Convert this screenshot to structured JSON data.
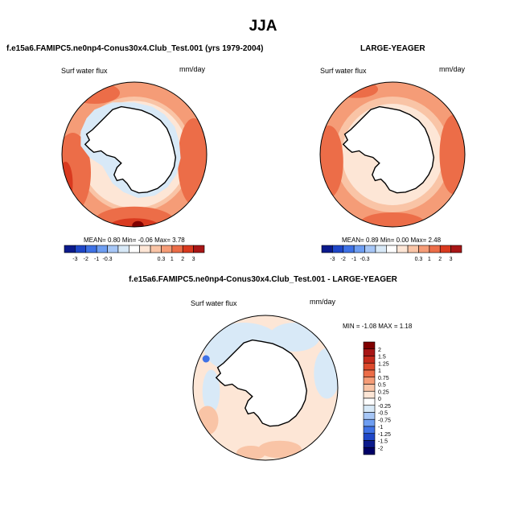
{
  "page": {
    "season": "JJA",
    "test_case": "f.e15a6.FAMIPC5.ne0np4-Conus30x4.Club_Test.001 (yrs 1979-2004)",
    "obs_case": "LARGE-YEAGER",
    "diff_title": "f.e15a6.FAMIPC5.ne0np4-Conus30x4.Club_Test.001 - LARGE-YEAGER"
  },
  "colors": {
    "land": "#ffffff",
    "ocean_base": "#f9c4a6",
    "ice": "#d8e9f7",
    "coast": "#000000"
  },
  "chart_data": [
    {
      "type": "heatmap",
      "projection": "polar-stereographic-south",
      "variable": "Surf water flux",
      "units": "mm/day",
      "mean_label": "MEAN=",
      "mean": "0.80",
      "min_label": "Min=",
      "min": "-0.06",
      "max_label": "Max=",
      "max": "3.78",
      "levels": [
        "-3",
        "-2",
        "-1",
        "-0.3",
        "0.3",
        "1",
        "2",
        "3"
      ],
      "colors": [
        "#0b1a8c",
        "#1f47c8",
        "#3f72e6",
        "#6e9ef2",
        "#a6c6f6",
        "#d8e9f7",
        "#ffffff",
        "#fde6d6",
        "#f9c4a6",
        "#f59c77",
        "#ec6d48",
        "#d93a1f",
        "#a81616"
      ]
    },
    {
      "type": "heatmap",
      "projection": "polar-stereographic-south",
      "variable": "Surf water flux",
      "units": "mm/day",
      "mean_label": "MEAN=",
      "mean": "0.89",
      "min_label": "Min=",
      "min": "0.00",
      "max_label": "Max=",
      "max": "2.48",
      "levels": [
        "-3",
        "-2",
        "-1",
        "-0.3",
        "0.3",
        "1",
        "2",
        "3"
      ],
      "colors": [
        "#0b1a8c",
        "#1f47c8",
        "#3f72e6",
        "#6e9ef2",
        "#a6c6f6",
        "#d8e9f7",
        "#ffffff",
        "#fde6d6",
        "#f9c4a6",
        "#f59c77",
        "#ec6d48",
        "#d93a1f",
        "#a81616"
      ]
    },
    {
      "type": "heatmap",
      "projection": "polar-stereographic-south",
      "variable": "Surf water flux",
      "units": "mm/day",
      "min_label": "MIN =",
      "min": "-1.08",
      "max_label": "MAX =",
      "max": "1.18",
      "levels": [
        "2",
        "1.5",
        "1.25",
        "1",
        "0.75",
        "0.5",
        "0.25",
        "0",
        "-0.25",
        "-0.5",
        "-0.75",
        "-1",
        "-1.25",
        "-1.5",
        "-2"
      ],
      "colors": [
        "#800000",
        "#a81616",
        "#c52a1c",
        "#dd4a2c",
        "#ec6d48",
        "#f59c77",
        "#f9c4a6",
        "#fde6d6",
        "#ffffff",
        "#d8e9f7",
        "#a6c6f6",
        "#6e9ef2",
        "#3f72e6",
        "#1f47c8",
        "#0b1a8c",
        "#000066"
      ]
    }
  ]
}
